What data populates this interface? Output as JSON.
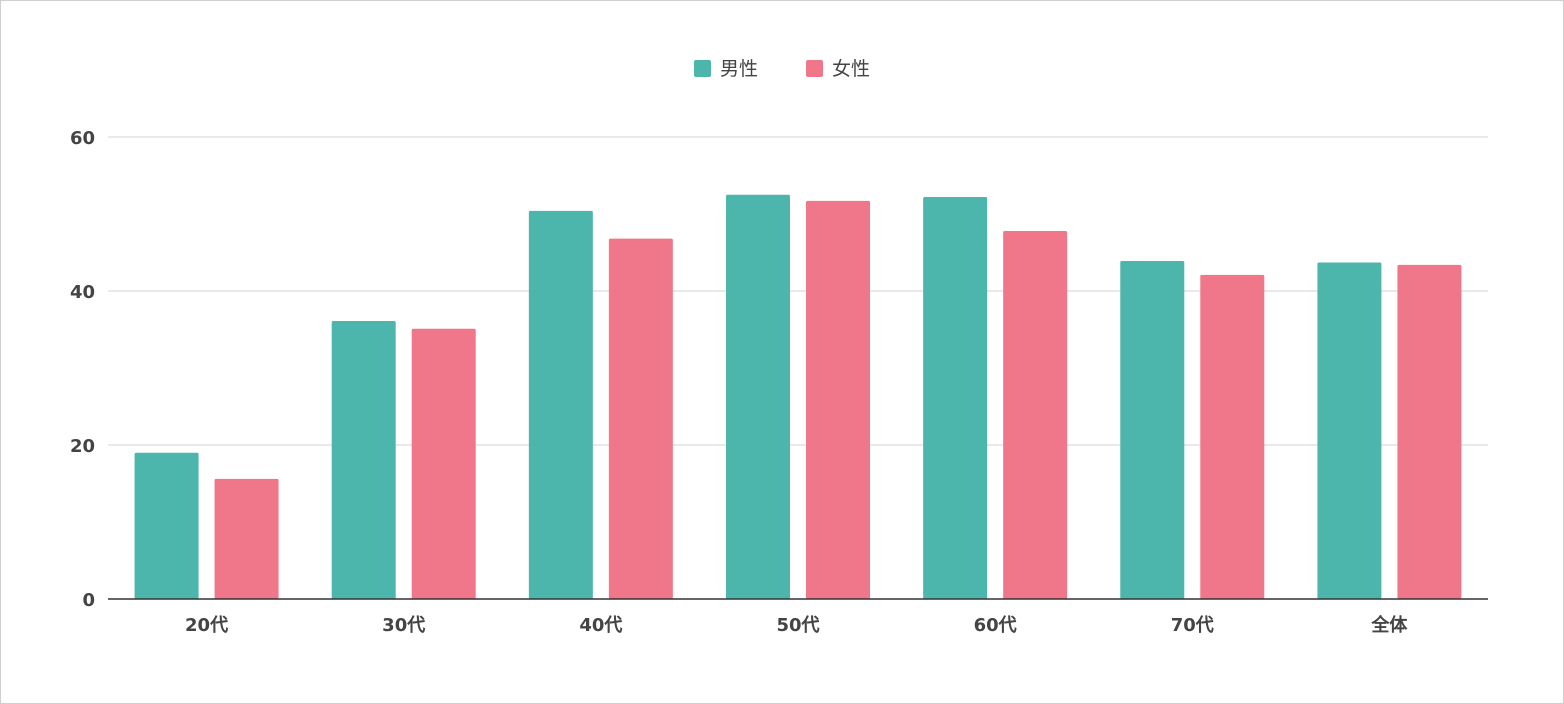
{
  "chart_data": {
    "type": "bar",
    "title": "",
    "xlabel": "",
    "ylabel": "",
    "categories": [
      "20代",
      "30代",
      "40代",
      "50代",
      "60代",
      "70代",
      "全体"
    ],
    "series": [
      {
        "name": "男性",
        "color": "#4db6ac",
        "values": [
          19.0,
          36.1,
          50.4,
          52.5,
          52.2,
          43.9,
          43.7
        ]
      },
      {
        "name": "女性",
        "color": "#f07789",
        "values": [
          15.6,
          35.1,
          46.8,
          51.7,
          47.8,
          42.1,
          43.4
        ]
      }
    ],
    "ylim": [
      0,
      60
    ],
    "yticks": [
      0,
      20,
      40,
      60
    ],
    "grid": true,
    "legend_position": "top-center"
  }
}
